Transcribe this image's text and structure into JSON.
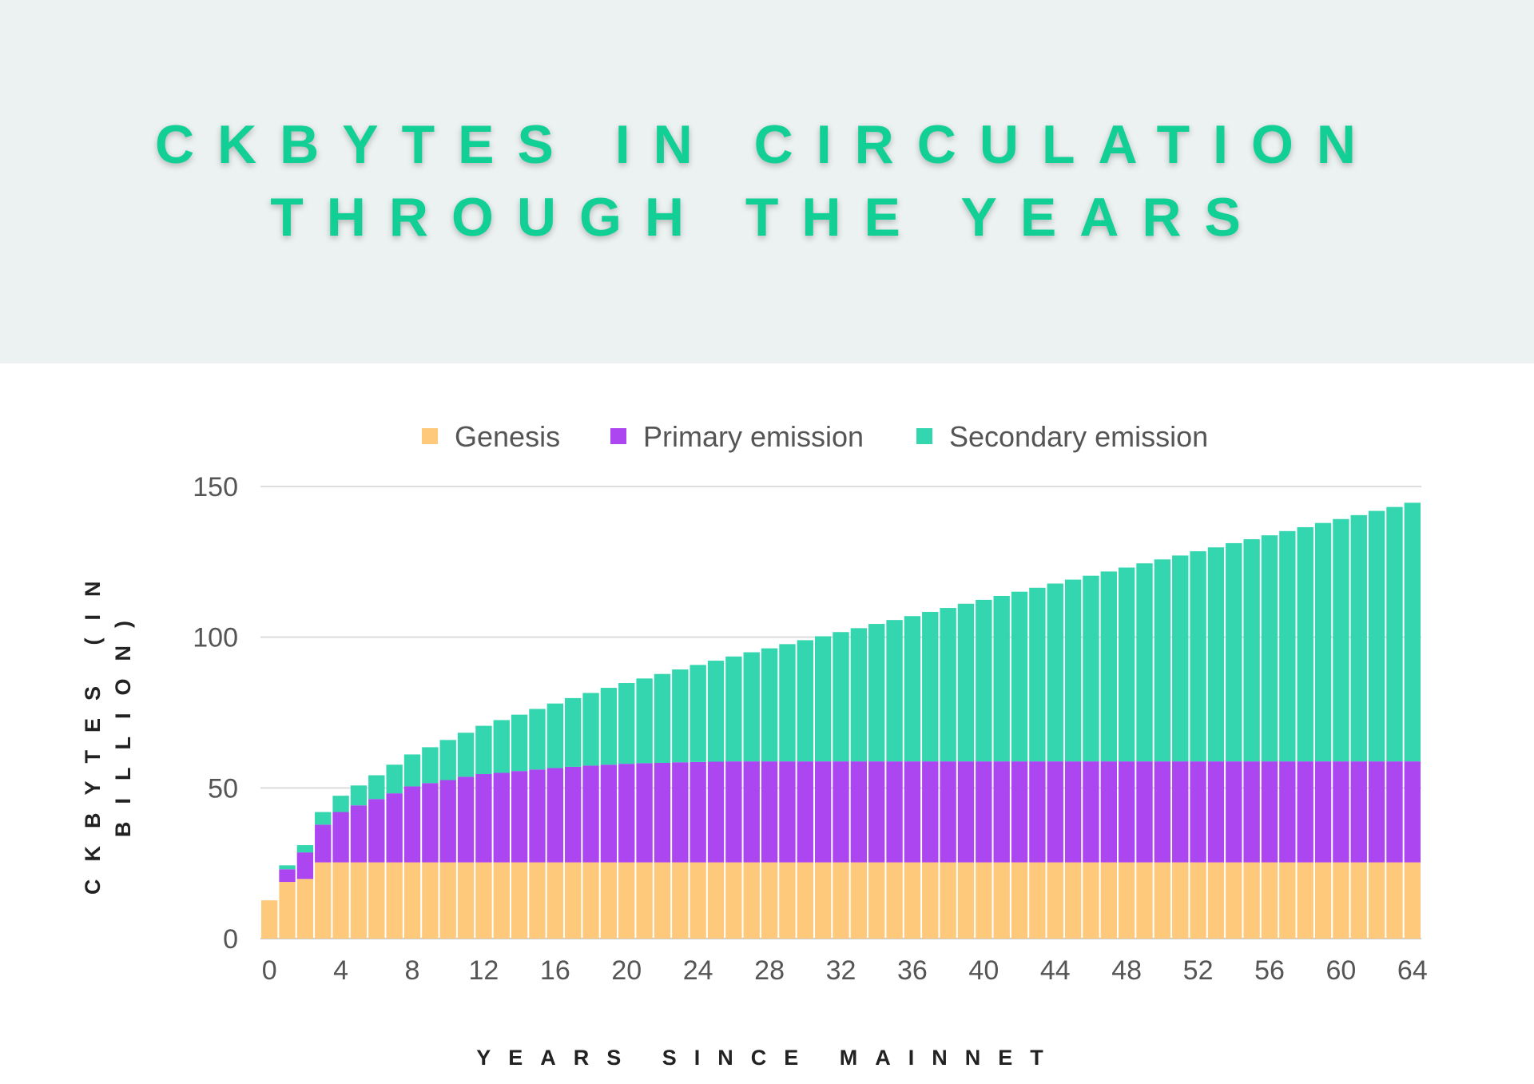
{
  "header": {
    "title_line1": "CKBYTES IN CIRCULATION",
    "title_line2": "THROUGH THE YEARS"
  },
  "chart_data": {
    "type": "bar",
    "stacked": true,
    "xlabel": "YEARS SINCE MAINNET",
    "ylabel_line1": "CKBYTES (IN",
    "ylabel_line2": "BILLION)",
    "ylim": [
      0,
      150
    ],
    "yticks": [
      "0",
      "50",
      "100",
      "150"
    ],
    "xticks": [
      "0",
      "4",
      "8",
      "12",
      "16",
      "20",
      "24",
      "28",
      "32",
      "36",
      "40",
      "44",
      "48",
      "52",
      "56",
      "60",
      "64"
    ],
    "grid": true,
    "legend_position": "top",
    "x": [
      0,
      1,
      2,
      3,
      4,
      5,
      6,
      7,
      8,
      9,
      10,
      11,
      12,
      13,
      14,
      15,
      16,
      17,
      18,
      19,
      20,
      21,
      22,
      23,
      24,
      25,
      26,
      27,
      28,
      29,
      30,
      31,
      32,
      33,
      34,
      35,
      36,
      37,
      38,
      39,
      40,
      41,
      42,
      43,
      44,
      45,
      46,
      47,
      48,
      49,
      50,
      51,
      52,
      53,
      54,
      55,
      56,
      57,
      58,
      59,
      60,
      61,
      62,
      63,
      64
    ],
    "series": [
      {
        "name": "Genesis",
        "color": "#fec97b",
        "values": [
          12.7,
          18.8,
          19.8,
          25.3,
          25.3,
          25.3,
          25.3,
          25.3,
          25.3,
          25.3,
          25.3,
          25.3,
          25.3,
          25.3,
          25.3,
          25.3,
          25.3,
          25.3,
          25.3,
          25.3,
          25.3,
          25.3,
          25.3,
          25.3,
          25.3,
          25.3,
          25.3,
          25.3,
          25.3,
          25.3,
          25.3,
          25.3,
          25.3,
          25.3,
          25.3,
          25.3,
          25.3,
          25.3,
          25.3,
          25.3,
          25.3,
          25.3,
          25.3,
          25.3,
          25.3,
          25.3,
          25.3,
          25.3,
          25.3,
          25.3,
          25.3,
          25.3,
          25.3,
          25.3,
          25.3,
          25.3,
          25.3,
          25.3,
          25.3,
          25.3,
          25.3,
          25.3,
          25.3,
          25.3,
          25.3
        ]
      },
      {
        "name": "Primary emission",
        "color": "#ab46f0",
        "values": [
          0,
          4.2,
          8.8,
          12.5,
          16.7,
          18.9,
          21.0,
          22.9,
          25.2,
          26.3,
          27.3,
          28.4,
          29.3,
          29.7,
          30.3,
          30.8,
          31.3,
          31.7,
          32.1,
          32.4,
          32.7,
          32.9,
          33.0,
          33.2,
          33.3,
          33.4,
          33.5,
          33.5,
          33.5,
          33.5,
          33.5,
          33.5,
          33.5,
          33.5,
          33.5,
          33.5,
          33.5,
          33.5,
          33.5,
          33.5,
          33.5,
          33.5,
          33.5,
          33.5,
          33.5,
          33.5,
          33.5,
          33.5,
          33.5,
          33.5,
          33.5,
          33.5,
          33.5,
          33.5,
          33.5,
          33.5,
          33.5,
          33.5,
          33.5,
          33.5,
          33.5,
          33.5,
          33.5,
          33.5,
          33.5
        ]
      },
      {
        "name": "Secondary emission",
        "color": "#33d6ae",
        "values": [
          0,
          1.3,
          2.4,
          4.2,
          5.4,
          6.6,
          7.9,
          9.5,
          10.6,
          11.9,
          13.3,
          14.6,
          16.0,
          17.5,
          18.7,
          20.1,
          21.4,
          22.8,
          24.1,
          25.5,
          26.8,
          28.1,
          29.5,
          30.8,
          32.2,
          33.5,
          34.8,
          36.2,
          37.5,
          38.9,
          40.2,
          41.5,
          42.9,
          44.2,
          45.6,
          46.9,
          48.2,
          49.6,
          50.9,
          52.3,
          53.6,
          54.9,
          56.3,
          57.6,
          59.0,
          60.3,
          61.6,
          63.0,
          64.3,
          65.7,
          67.0,
          68.3,
          69.7,
          71.0,
          72.4,
          73.7,
          75.0,
          76.4,
          77.7,
          79.1,
          80.4,
          81.7,
          83.1,
          84.4,
          85.8
        ]
      }
    ]
  }
}
